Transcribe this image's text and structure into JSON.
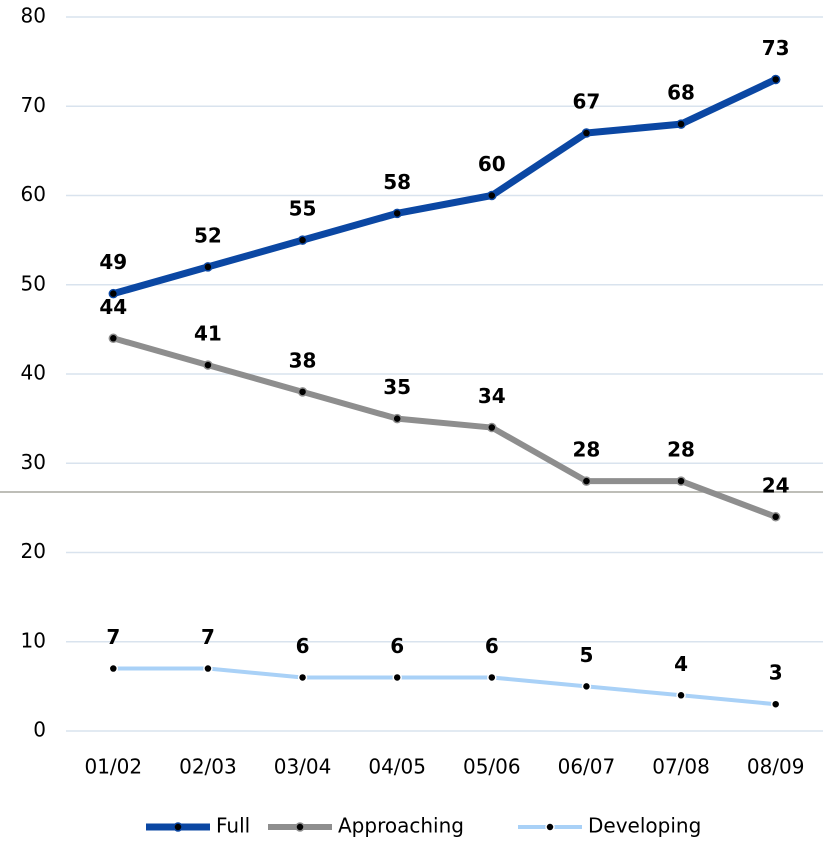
{
  "chart_data": {
    "type": "line",
    "categories": [
      "01/02",
      "02/03",
      "03/04",
      "04/05",
      "05/06",
      "06/07",
      "07/08",
      "08/09"
    ],
    "series": [
      {
        "name": "Full",
        "color": "#0b47a3",
        "values": [
          49,
          52,
          55,
          58,
          60,
          67,
          68,
          73
        ]
      },
      {
        "name": "Approaching",
        "color": "#8e8e8e",
        "values": [
          44,
          41,
          38,
          35,
          34,
          28,
          28,
          24
        ]
      },
      {
        "name": "Developing",
        "color": "#a9d1f7",
        "values": [
          7,
          7,
          6,
          6,
          6,
          5,
          4,
          3
        ]
      }
    ],
    "ylim": [
      0,
      80
    ],
    "yticks": [
      0,
      10,
      20,
      30,
      40,
      50,
      60,
      70,
      80
    ],
    "grid": true,
    "legend": "bottom"
  }
}
